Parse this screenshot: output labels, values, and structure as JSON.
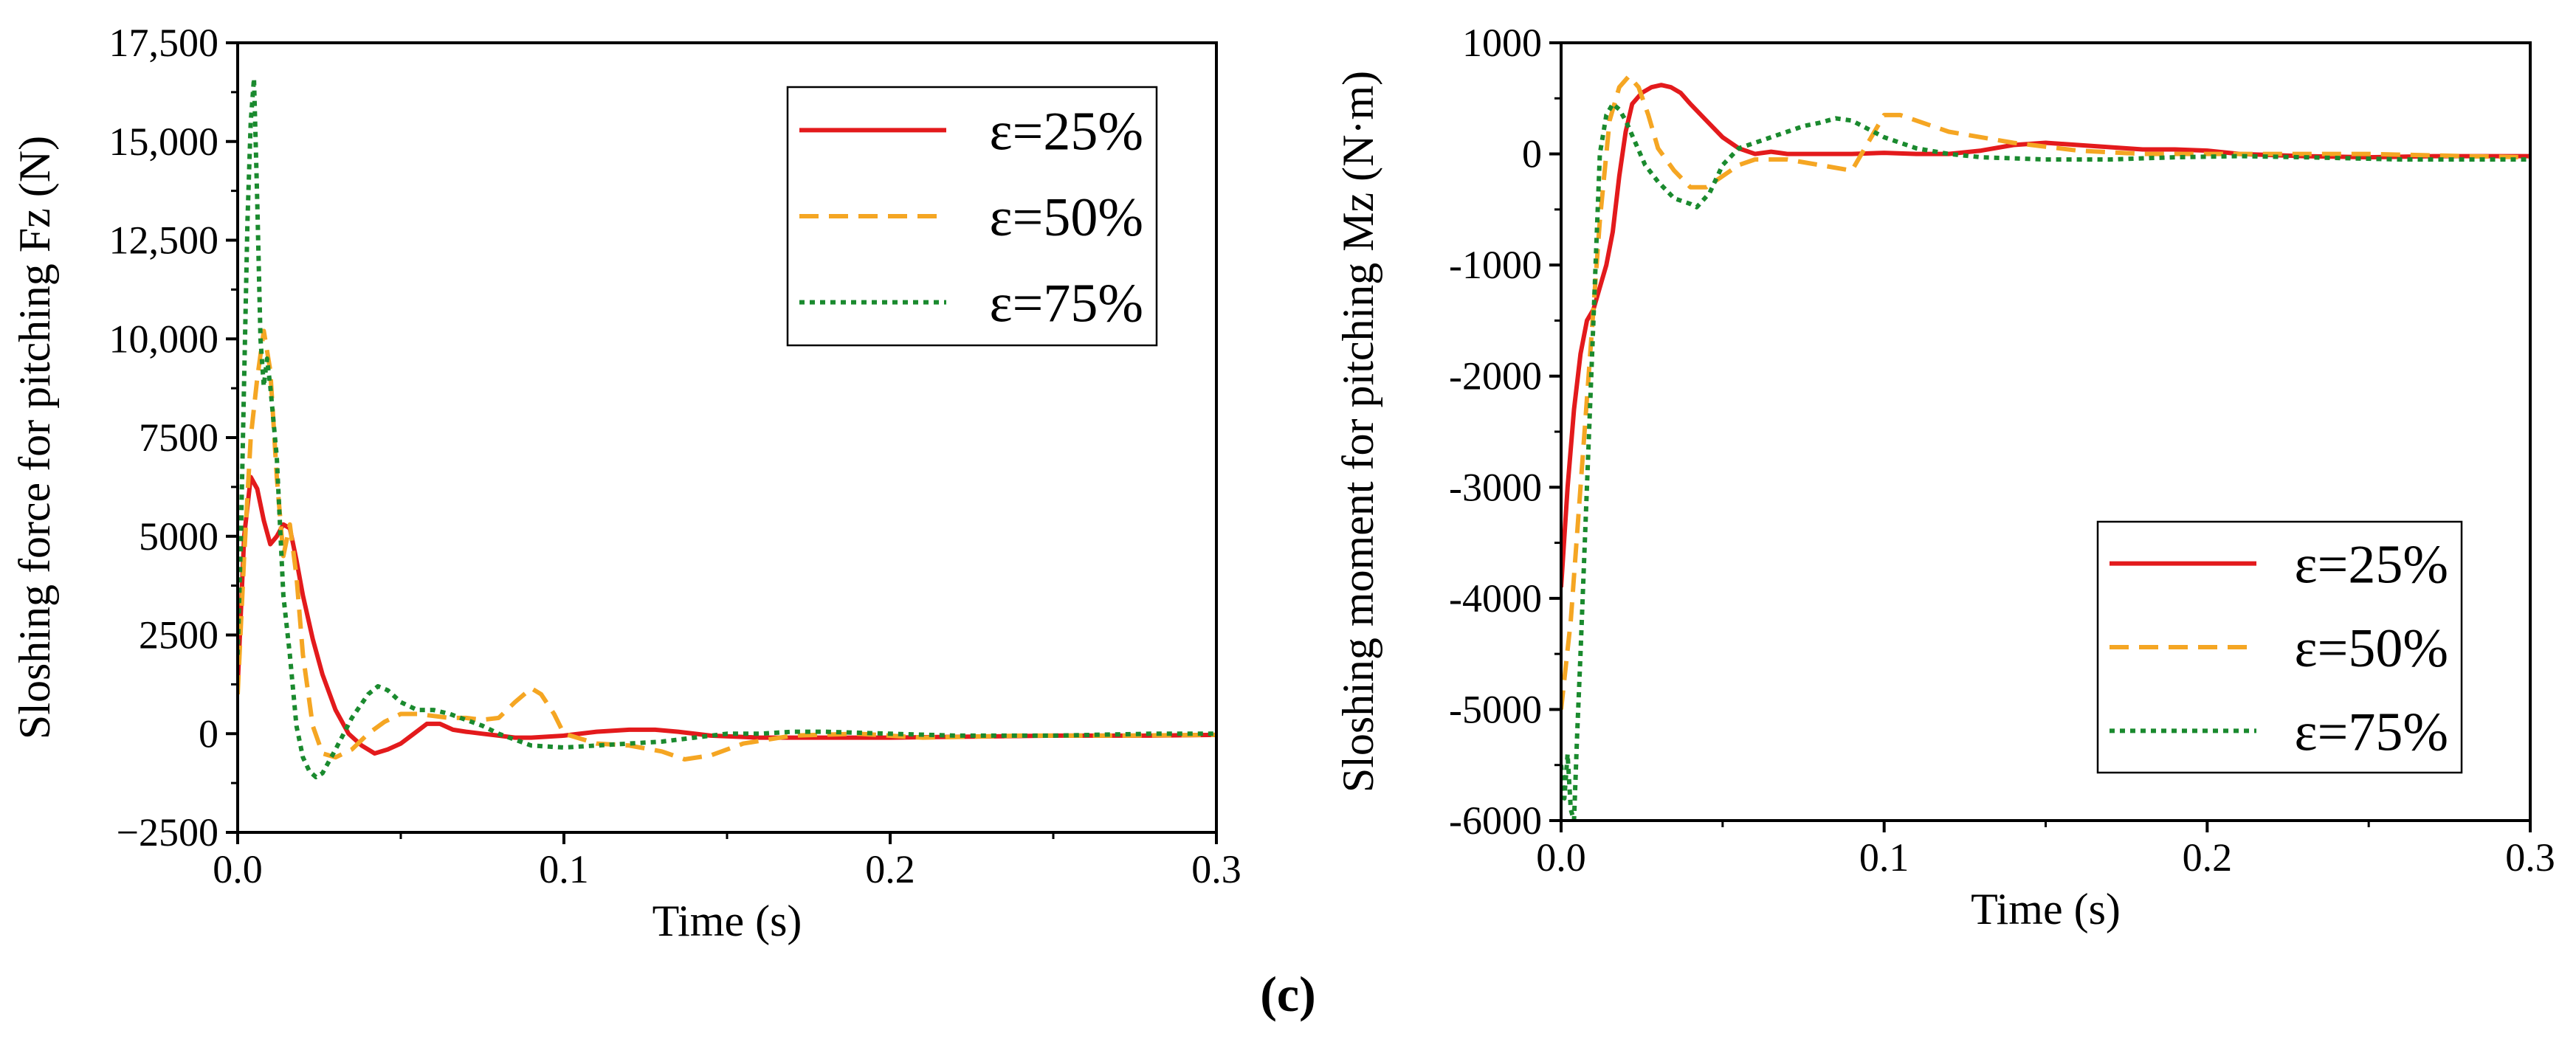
{
  "caption": "(c)",
  "chart_data": [
    {
      "type": "line",
      "xlabel": "Time (s)",
      "ylabel": "Sloshing force for pitching Fz (N)",
      "xlim": [
        0,
        0.3
      ],
      "ylim": [
        -2500,
        17500
      ],
      "x_ticks": [
        0,
        0.1,
        0.2,
        0.3
      ],
      "x_tick_labels": [
        "0.0",
        "0.1",
        "0.2",
        "0.3"
      ],
      "y_ticks": [
        -2500,
        0,
        2500,
        5000,
        7500,
        10000,
        12500,
        15000,
        17500
      ],
      "y_tick_labels": [
        "−2500",
        "0",
        "2500",
        "5000",
        "7500",
        "10,000",
        "12,500",
        "15,000",
        "17,500"
      ],
      "legend_position": "top-right",
      "series": [
        {
          "name": "ε=25%",
          "color": "#e31a1c",
          "style": "solid",
          "x": [
            0,
            0.002,
            0.004,
            0.006,
            0.008,
            0.01,
            0.012,
            0.014,
            0.016,
            0.018,
            0.02,
            0.023,
            0.026,
            0.03,
            0.034,
            0.038,
            0.042,
            0.046,
            0.05,
            0.054,
            0.058,
            0.062,
            0.066,
            0.07,
            0.075,
            0.08,
            0.085,
            0.09,
            0.1,
            0.11,
            0.12,
            0.128,
            0.135,
            0.145,
            0.16,
            0.18,
            0.2,
            0.22,
            0.25,
            0.28,
            0.3
          ],
          "y": [
            1200,
            5000,
            6500,
            6200,
            5400,
            4800,
            5000,
            5300,
            5200,
            4400,
            3500,
            2400,
            1500,
            600,
            0,
            -300,
            -500,
            -400,
            -250,
            0,
            250,
            250,
            100,
            50,
            0,
            -50,
            -100,
            -100,
            -50,
            50,
            100,
            100,
            50,
            -50,
            -100,
            -100,
            -100,
            -80,
            -50,
            -50,
            -30
          ]
        },
        {
          "name": "ε=50%",
          "color": "#f5a623",
          "style": "dashed",
          "x": [
            0,
            0.002,
            0.004,
            0.006,
            0.008,
            0.01,
            0.012,
            0.014,
            0.016,
            0.018,
            0.02,
            0.023,
            0.026,
            0.03,
            0.035,
            0.04,
            0.045,
            0.05,
            0.055,
            0.06,
            0.065,
            0.07,
            0.075,
            0.08,
            0.085,
            0.09,
            0.093,
            0.097,
            0.1,
            0.11,
            0.12,
            0.13,
            0.137,
            0.145,
            0.155,
            0.17,
            0.19,
            0.21,
            0.24,
            0.27,
            0.3
          ],
          "y": [
            1000,
            4500,
            7500,
            9000,
            10200,
            9200,
            6500,
            4500,
            5300,
            4000,
            2000,
            200,
            -500,
            -600,
            -400,
            0,
            300,
            500,
            500,
            450,
            400,
            400,
            350,
            400,
            800,
            1150,
            1000,
            500,
            0,
            -250,
            -300,
            -450,
            -650,
            -550,
            -250,
            -50,
            0,
            -100,
            -50,
            -50,
            -30
          ]
        },
        {
          "name": "ε=75%",
          "color": "#1a8a2e",
          "style": "dotted",
          "x": [
            0,
            0.001,
            0.002,
            0.003,
            0.004,
            0.005,
            0.006,
            0.007,
            0.008,
            0.009,
            0.01,
            0.012,
            0.014,
            0.016,
            0.018,
            0.02,
            0.022,
            0.024,
            0.026,
            0.03,
            0.035,
            0.04,
            0.043,
            0.046,
            0.05,
            0.055,
            0.06,
            0.065,
            0.07,
            0.075,
            0.08,
            0.09,
            0.1,
            0.11,
            0.12,
            0.13,
            0.14,
            0.15,
            0.16,
            0.17,
            0.18,
            0.2,
            0.22,
            0.25,
            0.28,
            0.3
          ],
          "y": [
            2000,
            5000,
            9000,
            13000,
            15500,
            16600,
            13500,
            10000,
            8800,
            9500,
            8800,
            7000,
            3500,
            2000,
            200,
            -600,
            -950,
            -1100,
            -1000,
            -400,
            400,
            1000,
            1200,
            1100,
            800,
            600,
            600,
            500,
            350,
            200,
            0,
            -300,
            -350,
            -300,
            -250,
            -200,
            -100,
            0,
            0,
            50,
            50,
            0,
            -50,
            -50,
            0,
            0
          ]
        }
      ]
    },
    {
      "type": "line",
      "xlabel": "Time (s)",
      "ylabel": "Sloshing moment for pitching Mz (N·m)",
      "xlim": [
        0,
        0.3
      ],
      "ylim": [
        -6000,
        1000
      ],
      "x_ticks": [
        0,
        0.1,
        0.2,
        0.3
      ],
      "x_tick_labels": [
        "0.0",
        "0.1",
        "0.2",
        "0.3"
      ],
      "y_ticks": [
        -6000,
        -5000,
        -4000,
        -3000,
        -2000,
        -1000,
        0,
        1000
      ],
      "y_tick_labels": [
        "-6000",
        "-5000",
        "-4000",
        "-3000",
        "-2000",
        "-1000",
        "0",
        "1000"
      ],
      "legend_position": "center-right",
      "series": [
        {
          "name": "ε=25%",
          "color": "#e31a1c",
          "style": "solid",
          "x": [
            0,
            0.002,
            0.004,
            0.006,
            0.008,
            0.01,
            0.012,
            0.014,
            0.016,
            0.018,
            0.02,
            0.022,
            0.025,
            0.028,
            0.031,
            0.034,
            0.037,
            0.04,
            0.045,
            0.05,
            0.055,
            0.06,
            0.065,
            0.07,
            0.08,
            0.09,
            0.1,
            0.11,
            0.12,
            0.13,
            0.14,
            0.15,
            0.16,
            0.17,
            0.18,
            0.19,
            0.2,
            0.21,
            0.23,
            0.25,
            0.27,
            0.3
          ],
          "y": [
            -3900,
            -3000,
            -2300,
            -1800,
            -1500,
            -1400,
            -1200,
            -1000,
            -700,
            -200,
            200,
            450,
            550,
            600,
            620,
            600,
            550,
            450,
            300,
            150,
            50,
            0,
            20,
            0,
            0,
            0,
            10,
            0,
            0,
            30,
            80,
            100,
            80,
            60,
            40,
            40,
            30,
            0,
            -20,
            -30,
            -20,
            -20
          ]
        },
        {
          "name": "ε=50%",
          "color": "#f5a623",
          "style": "dashed",
          "x": [
            0,
            0.003,
            0.006,
            0.009,
            0.012,
            0.015,
            0.018,
            0.021,
            0.024,
            0.027,
            0.03,
            0.035,
            0.04,
            0.045,
            0.05,
            0.055,
            0.06,
            0.07,
            0.08,
            0.09,
            0.095,
            0.1,
            0.105,
            0.11,
            0.12,
            0.14,
            0.16,
            0.18,
            0.2,
            0.22,
            0.25,
            0.28,
            0.3
          ],
          "y": [
            -5000,
            -4200,
            -3000,
            -1800,
            -600,
            300,
            600,
            700,
            600,
            350,
            50,
            -150,
            -300,
            -300,
            -200,
            -100,
            -50,
            -50,
            -100,
            -150,
            100,
            350,
            350,
            300,
            200,
            100,
            30,
            0,
            0,
            0,
            0,
            -20,
            -30
          ]
        },
        {
          "name": "ε=75%",
          "color": "#1a8a2e",
          "style": "dotted",
          "x": [
            0,
            0.001,
            0.002,
            0.003,
            0.004,
            0.005,
            0.006,
            0.008,
            0.01,
            0.012,
            0.014,
            0.016,
            0.018,
            0.02,
            0.023,
            0.026,
            0.03,
            0.035,
            0.04,
            0.042,
            0.046,
            0.05,
            0.055,
            0.06,
            0.065,
            0.07,
            0.075,
            0.08,
            0.085,
            0.09,
            0.1,
            0.11,
            0.12,
            0.13,
            0.15,
            0.17,
            0.19,
            0.21,
            0.23,
            0.26,
            0.3
          ],
          "y": [
            -5500,
            -5800,
            -5400,
            -5900,
            -6000,
            -5200,
            -4500,
            -3000,
            -1500,
            0,
            350,
            450,
            400,
            300,
            100,
            -100,
            -250,
            -400,
            -450,
            -480,
            -350,
            -100,
            50,
            100,
            150,
            200,
            250,
            280,
            320,
            300,
            150,
            50,
            0,
            -30,
            -50,
            -50,
            -30,
            -20,
            -30,
            -50,
            -50
          ]
        }
      ]
    }
  ]
}
